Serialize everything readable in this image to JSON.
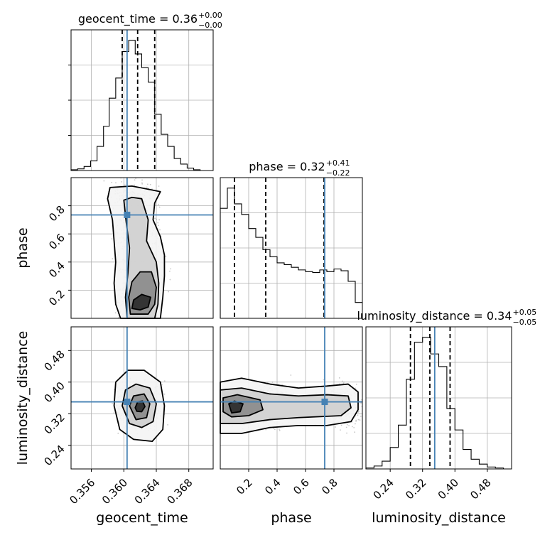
{
  "chart_data": {
    "type": "corner",
    "parameters": [
      "geocent_time",
      "phase",
      "luminosity_distance"
    ],
    "truths": {
      "geocent_time": 0.3604,
      "phase": 0.735,
      "luminosity_distance": 0.35
    },
    "colors": {
      "truth": "#4682b4",
      "hist": "#000000",
      "grid": "#b0b0b0",
      "contour": "#000000"
    },
    "diagonal": [
      {
        "param": "geocent_time",
        "title_main": "geocent_time = 0.36",
        "title_sup": "+0.00",
        "title_sub": "−0.00",
        "xlim": [
          0.3535,
          0.371
        ],
        "quantiles": [
          0.3598,
          0.3617,
          0.3638
        ],
        "bin_edges": [
          0.3535,
          0.3543,
          0.3551,
          0.3559,
          0.3567,
          0.3575,
          0.3582,
          0.359,
          0.3598,
          0.3606,
          0.3614,
          0.3622,
          0.363,
          0.3638,
          0.3646,
          0.3654,
          0.3662,
          0.367,
          0.3678,
          0.3686,
          0.3694,
          0.371
        ],
        "counts": [
          1,
          2,
          5,
          12,
          30,
          55,
          90,
          115,
          148,
          162,
          145,
          128,
          110,
          70,
          45,
          30,
          15,
          8,
          3,
          1,
          0
        ]
      },
      {
        "param": "phase",
        "title_main": "phase = 0.32",
        "title_sup": "+0.41",
        "title_sub": "−0.22",
        "xlim": [
          0.0,
          1.0
        ],
        "quantiles": [
          0.1,
          0.32,
          0.73
        ],
        "bin_edges": [
          0.0,
          0.05,
          0.1,
          0.15,
          0.2,
          0.25,
          0.3,
          0.35,
          0.4,
          0.45,
          0.5,
          0.55,
          0.6,
          0.65,
          0.7,
          0.75,
          0.8,
          0.85,
          0.9,
          0.95,
          1.0
        ],
        "counts": [
          125,
          148,
          130,
          118,
          102,
          92,
          78,
          70,
          63,
          61,
          58,
          55,
          53,
          52,
          55,
          53,
          56,
          54,
          42,
          18
        ]
      },
      {
        "param": "luminosity_distance",
        "title_main": "luminosity_distance = 0.34",
        "title_sup": "+0.05",
        "title_sub": "−0.05",
        "xlim": [
          0.18,
          0.54
        ],
        "quantiles": [
          0.29,
          0.338,
          0.388
        ],
        "bin_edges": [
          0.18,
          0.2,
          0.22,
          0.24,
          0.26,
          0.28,
          0.3,
          0.32,
          0.34,
          0.36,
          0.38,
          0.4,
          0.42,
          0.44,
          0.46,
          0.48,
          0.5,
          0.52,
          0.54
        ],
        "counts": [
          1,
          3,
          8,
          22,
          45,
          92,
          130,
          135,
          118,
          105,
          62,
          40,
          20,
          10,
          5,
          2,
          1,
          0
        ]
      }
    ],
    "axes_ticks": {
      "geocent_time": {
        "values": [
          0.356,
          0.36,
          0.364,
          0.368
        ],
        "labels": [
          "0.356",
          "0.360",
          "0.364",
          "0.368"
        ]
      },
      "phase_x": {
        "values": [
          0.2,
          0.4,
          0.6,
          0.8
        ],
        "labels": [
          "0.2",
          "0.4",
          "0.6",
          "0.8"
        ]
      },
      "phase_y": {
        "values": [
          0.2,
          0.4,
          0.6,
          0.8
        ],
        "labels": [
          "0.2",
          "0.4",
          "0.6",
          "0.8"
        ]
      },
      "luminosity_distance": {
        "values": [
          0.24,
          0.32,
          0.4,
          0.48
        ],
        "labels": [
          "0.24",
          "0.32",
          "0.40",
          "0.48"
        ]
      }
    },
    "axis_labels": {
      "x": [
        "geocent_time",
        "phase",
        "luminosity_distance"
      ],
      "y": [
        "phase",
        "luminosity_distance"
      ]
    },
    "joint_2d": [
      {
        "x_param": "geocent_time",
        "y_param": "phase",
        "xlim": [
          0.3535,
          0.371
        ],
        "ylim": [
          0.0,
          1.0
        ],
        "density_centers": [
          [
            0.3618,
            0.1
          ],
          [
            0.3625,
            0.25
          ],
          [
            0.362,
            0.45
          ],
          [
            0.3618,
            0.65
          ],
          [
            0.3612,
            0.85
          ]
        ],
        "contours": [
          [
            [
              0.3596,
              0.0
            ],
            [
              0.359,
              0.1
            ],
            [
              0.3588,
              0.25
            ],
            [
              0.359,
              0.4
            ],
            [
              0.3588,
              0.55
            ],
            [
              0.3586,
              0.7
            ],
            [
              0.358,
              0.85
            ],
            [
              0.3583,
              0.93
            ],
            [
              0.361,
              0.94
            ],
            [
              0.3628,
              0.92
            ],
            [
              0.3645,
              0.9
            ],
            [
              0.3638,
              0.82
            ],
            [
              0.3636,
              0.7
            ],
            [
              0.3645,
              0.58
            ],
            [
              0.365,
              0.45
            ],
            [
              0.365,
              0.3
            ],
            [
              0.3648,
              0.15
            ],
            [
              0.3645,
              0.0
            ]
          ],
          [
            [
              0.3604,
              0.0
            ],
            [
              0.3602,
              0.15
            ],
            [
              0.3605,
              0.32
            ],
            [
              0.3607,
              0.5
            ],
            [
              0.3603,
              0.68
            ],
            [
              0.36,
              0.84
            ],
            [
              0.361,
              0.86
            ],
            [
              0.3622,
              0.85
            ],
            [
              0.363,
              0.7
            ],
            [
              0.3628,
              0.55
            ],
            [
              0.364,
              0.4
            ],
            [
              0.3643,
              0.25
            ],
            [
              0.3642,
              0.1
            ],
            [
              0.3638,
              0.0
            ]
          ],
          [
            [
              0.3608,
              0.03
            ],
            [
              0.3606,
              0.15
            ],
            [
              0.361,
              0.26
            ],
            [
              0.362,
              0.33
            ],
            [
              0.3634,
              0.33
            ],
            [
              0.364,
              0.22
            ],
            [
              0.3638,
              0.1
            ],
            [
              0.363,
              0.03
            ]
          ],
          [
            [
              0.361,
              0.07
            ],
            [
              0.3612,
              0.13
            ],
            [
              0.3622,
              0.17
            ],
            [
              0.3633,
              0.15
            ],
            [
              0.363,
              0.08
            ],
            [
              0.362,
              0.06
            ]
          ]
        ]
      },
      {
        "x_param": "geocent_time",
        "y_param": "luminosity_distance",
        "xlim": [
          0.3535,
          0.371
        ],
        "ylim": [
          0.18,
          0.54
        ],
        "density_centers": [
          [
            0.3618,
            0.34
          ]
        ],
        "contours": [
          [
            [
              0.3588,
              0.34
            ],
            [
              0.359,
              0.4
            ],
            [
              0.3605,
              0.43
            ],
            [
              0.3625,
              0.43
            ],
            [
              0.3645,
              0.4
            ],
            [
              0.365,
              0.34
            ],
            [
              0.3648,
              0.28
            ],
            [
              0.3635,
              0.25
            ],
            [
              0.3612,
              0.255
            ],
            [
              0.3595,
              0.28
            ]
          ],
          [
            [
              0.3598,
              0.34
            ],
            [
              0.3602,
              0.38
            ],
            [
              0.3615,
              0.395
            ],
            [
              0.3632,
              0.385
            ],
            [
              0.364,
              0.345
            ],
            [
              0.3636,
              0.3
            ],
            [
              0.3622,
              0.285
            ],
            [
              0.3607,
              0.295
            ]
          ],
          [
            [
              0.3607,
              0.34
            ],
            [
              0.3612,
              0.365
            ],
            [
              0.3625,
              0.37
            ],
            [
              0.3632,
              0.345
            ],
            [
              0.3628,
              0.31
            ],
            [
              0.3615,
              0.305
            ]
          ],
          [
            [
              0.3614,
              0.335
            ],
            [
              0.3617,
              0.35
            ],
            [
              0.3623,
              0.352
            ],
            [
              0.3626,
              0.338
            ],
            [
              0.3622,
              0.325
            ],
            [
              0.3616,
              0.326
            ]
          ]
        ]
      },
      {
        "x_param": "phase",
        "y_param": "luminosity_distance",
        "xlim": [
          0.0,
          1.0
        ],
        "ylim": [
          0.18,
          0.54
        ],
        "density_centers": [
          [
            0.08,
            0.34
          ],
          [
            0.35,
            0.34
          ],
          [
            0.85,
            0.34
          ]
        ],
        "contours": [
          [
            [
              0.0,
              0.4
            ],
            [
              0.15,
              0.41
            ],
            [
              0.35,
              0.395
            ],
            [
              0.55,
              0.385
            ],
            [
              0.75,
              0.39
            ],
            [
              0.9,
              0.395
            ],
            [
              0.97,
              0.375
            ],
            [
              0.97,
              0.33
            ],
            [
              0.92,
              0.3
            ],
            [
              0.75,
              0.29
            ],
            [
              0.55,
              0.29
            ],
            [
              0.35,
              0.285
            ],
            [
              0.15,
              0.27
            ],
            [
              0.0,
              0.27
            ]
          ],
          [
            [
              0.0,
              0.38
            ],
            [
              0.15,
              0.385
            ],
            [
              0.35,
              0.37
            ],
            [
              0.55,
              0.365
            ],
            [
              0.75,
              0.368
            ],
            [
              0.9,
              0.365
            ],
            [
              0.92,
              0.335
            ],
            [
              0.85,
              0.315
            ],
            [
              0.55,
              0.31
            ],
            [
              0.35,
              0.305
            ],
            [
              0.15,
              0.295
            ],
            [
              0.0,
              0.295
            ]
          ],
          [
            [
              0.02,
              0.36
            ],
            [
              0.12,
              0.368
            ],
            [
              0.28,
              0.355
            ],
            [
              0.3,
              0.33
            ],
            [
              0.2,
              0.315
            ],
            [
              0.08,
              0.312
            ],
            [
              0.02,
              0.325
            ]
          ],
          [
            [
              0.06,
              0.345
            ],
            [
              0.1,
              0.352
            ],
            [
              0.16,
              0.345
            ],
            [
              0.14,
              0.325
            ],
            [
              0.08,
              0.322
            ]
          ]
        ]
      }
    ]
  }
}
